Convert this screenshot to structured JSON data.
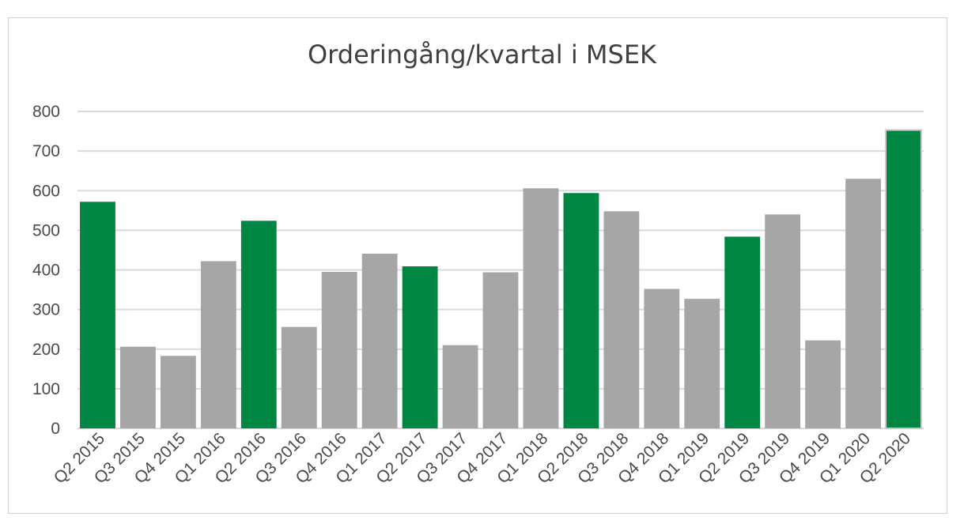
{
  "chart_data": {
    "type": "bar",
    "title": "Orderingång/kvartal i MSEK",
    "xlabel": "",
    "ylabel": "",
    "ylim": [
      0,
      800
    ],
    "yticks": [
      0,
      100,
      200,
      300,
      400,
      500,
      600,
      700,
      800
    ],
    "grid": true,
    "categories": [
      "Q2 2015",
      "Q3 2015",
      "Q4 2015",
      "Q1 2016",
      "Q2 2016",
      "Q3 2016",
      "Q4 2016",
      "Q1 2017",
      "Q2 2017",
      "Q3 2017",
      "Q4 2017",
      "Q1 2018",
      "Q2 2018",
      "Q3 2018",
      "Q4 2018",
      "Q1 2019",
      "Q2 2019",
      "Q3 2019",
      "Q4 2019",
      "Q1 2020",
      "Q2 2020"
    ],
    "values": [
      572,
      206,
      183,
      422,
      524,
      256,
      395,
      441,
      409,
      210,
      394,
      606,
      594,
      548,
      352,
      327,
      484,
      540,
      222,
      630,
      753
    ],
    "bar_colors": [
      "#008542",
      "#a6a6a6",
      "#a6a6a6",
      "#a6a6a6",
      "#008542",
      "#a6a6a6",
      "#a6a6a6",
      "#a6a6a6",
      "#008542",
      "#a6a6a6",
      "#a6a6a6",
      "#a6a6a6",
      "#008542",
      "#a6a6a6",
      "#a6a6a6",
      "#a6a6a6",
      "#008542",
      "#a6a6a6",
      "#a6a6a6",
      "#a6a6a6",
      "#008542"
    ],
    "colors": {
      "highlight": "#008542",
      "default": "#a6a6a6",
      "grid": "#d9d9d9"
    }
  }
}
